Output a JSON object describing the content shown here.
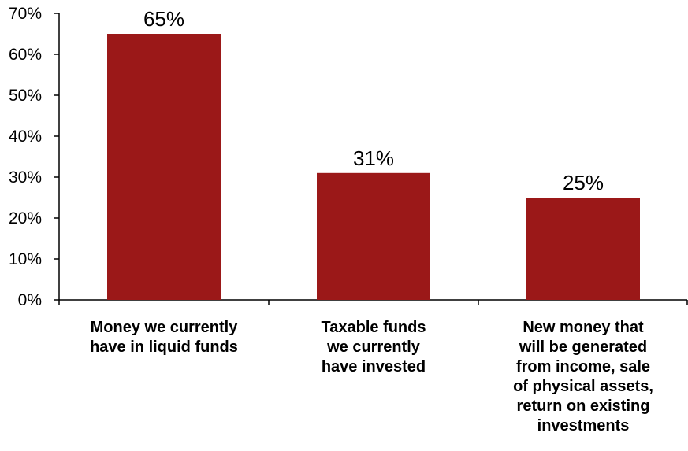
{
  "chart_data": {
    "type": "bar",
    "categories": [
      [
        "Money we currently",
        "have in liquid funds"
      ],
      [
        "Taxable funds",
        "we currently",
        "have invested"
      ],
      [
        "New money that",
        "will be generated",
        "from income, sale",
        "of physical assets,",
        "return on existing",
        "investments"
      ]
    ],
    "values": [
      65,
      31,
      25
    ],
    "data_labels": [
      "65%",
      "31%",
      "25%"
    ],
    "ylim": [
      0,
      70
    ],
    "yticks": [
      0,
      10,
      20,
      30,
      40,
      50,
      60,
      70
    ],
    "ytick_labels": [
      "0%",
      "10%",
      "20%",
      "30%",
      "40%",
      "50%",
      "60%",
      "70%"
    ],
    "bar_color": "#9B1818",
    "grid": false,
    "title": "",
    "xlabel": "",
    "ylabel": ""
  }
}
